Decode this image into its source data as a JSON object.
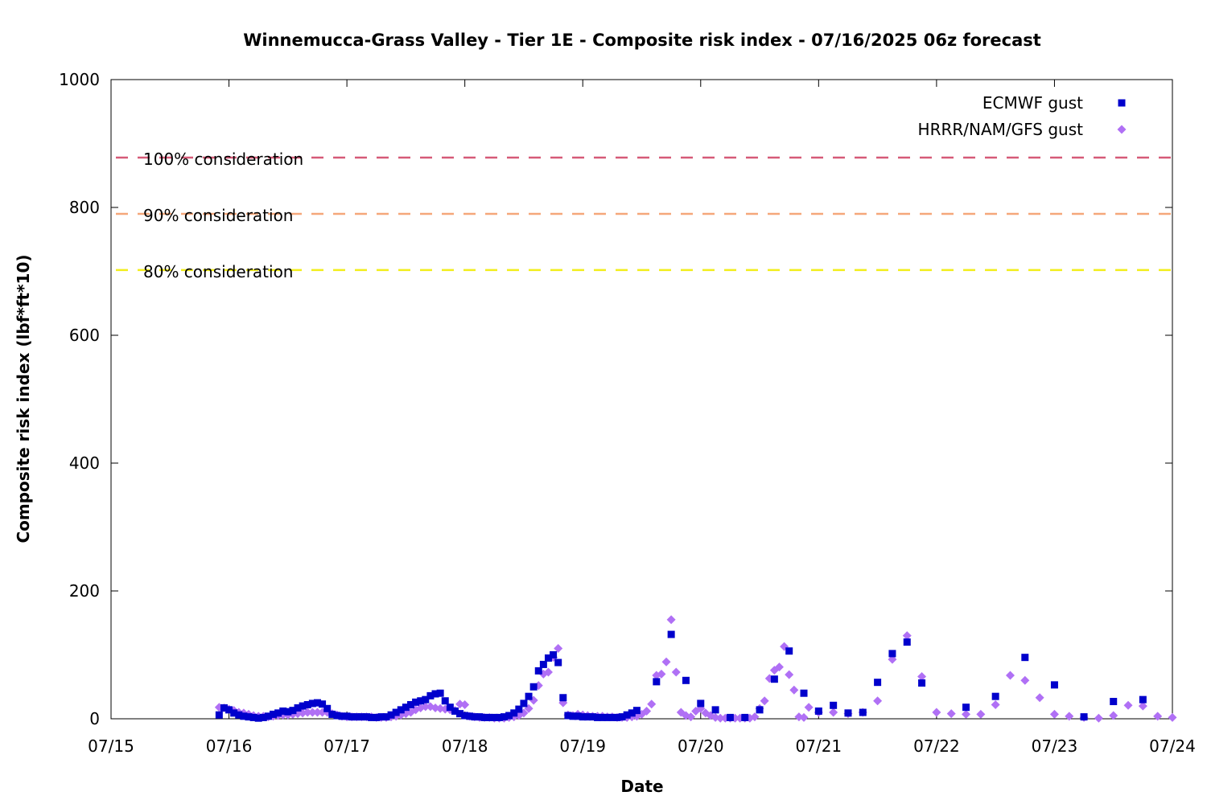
{
  "chart_data": {
    "type": "scatter",
    "title": "Winnemucca-Grass Valley - Tier 1E - Composite risk index - 07/16/2025 06z forecast",
    "xlabel": "Date",
    "ylabel": "Composite risk index (lbf*ft*10)",
    "xlim": [
      "07/15",
      "07/24"
    ],
    "ylim": [
      0,
      1000
    ],
    "x_ticks": [
      "07/15",
      "07/16",
      "07/17",
      "07/18",
      "07/19",
      "07/20",
      "07/21",
      "07/22",
      "07/23",
      "07/24"
    ],
    "y_ticks": [
      0,
      200,
      400,
      600,
      800,
      1000
    ],
    "grid": false,
    "legend_position": "top-right",
    "reference_lines": [
      {
        "label": "100% consideration",
        "value": 878,
        "color": "#d65a78"
      },
      {
        "label": "90% consideration",
        "value": 790,
        "color": "#f5a77a"
      },
      {
        "label": "80% consideration",
        "value": 702,
        "color": "#f2ee1c"
      }
    ],
    "series": [
      {
        "name": "ECMWF gust",
        "color": "#0000cc",
        "marker": "square",
        "points": [
          [
            "07/15 22:00",
            6
          ],
          [
            "07/15 23:00",
            17
          ],
          [
            "07/16 00:00",
            14
          ],
          [
            "07/16 01:00",
            9
          ],
          [
            "07/16 02:00",
            6
          ],
          [
            "07/16 03:00",
            4
          ],
          [
            "07/16 04:00",
            3
          ],
          [
            "07/16 05:00",
            2
          ],
          [
            "07/16 06:00",
            1
          ],
          [
            "07/16 07:00",
            2
          ],
          [
            "07/16 08:00",
            4
          ],
          [
            "07/16 09:00",
            7
          ],
          [
            "07/16 10:00",
            9
          ],
          [
            "07/16 11:00",
            12
          ],
          [
            "07/16 12:00",
            11
          ],
          [
            "07/16 13:00",
            13
          ],
          [
            "07/16 14:00",
            17
          ],
          [
            "07/16 15:00",
            20
          ],
          [
            "07/16 16:00",
            22
          ],
          [
            "07/16 17:00",
            24
          ],
          [
            "07/16 18:00",
            25
          ],
          [
            "07/16 19:00",
            23
          ],
          [
            "07/16 20:00",
            16
          ],
          [
            "07/16 21:00",
            7
          ],
          [
            "07/16 22:00",
            5
          ],
          [
            "07/16 23:00",
            4
          ],
          [
            "07/17 00:00",
            4
          ],
          [
            "07/17 01:00",
            3
          ],
          [
            "07/17 02:00",
            3
          ],
          [
            "07/17 03:00",
            3
          ],
          [
            "07/17 04:00",
            3
          ],
          [
            "07/17 05:00",
            2
          ],
          [
            "07/17 06:00",
            2
          ],
          [
            "07/17 07:00",
            3
          ],
          [
            "07/17 08:00",
            3
          ],
          [
            "07/17 09:00",
            6
          ],
          [
            "07/17 10:00",
            10
          ],
          [
            "07/17 11:00",
            14
          ],
          [
            "07/17 12:00",
            18
          ],
          [
            "07/17 13:00",
            22
          ],
          [
            "07/17 14:00",
            26
          ],
          [
            "07/17 15:00",
            28
          ],
          [
            "07/17 16:00",
            30
          ],
          [
            "07/17 17:00",
            36
          ],
          [
            "07/17 18:00",
            39
          ],
          [
            "07/17 19:00",
            40
          ],
          [
            "07/17 20:00",
            28
          ],
          [
            "07/17 21:00",
            18
          ],
          [
            "07/17 22:00",
            12
          ],
          [
            "07/17 23:00",
            8
          ],
          [
            "07/18 00:00",
            5
          ],
          [
            "07/18 01:00",
            4
          ],
          [
            "07/18 02:00",
            3
          ],
          [
            "07/18 03:00",
            3
          ],
          [
            "07/18 04:00",
            2
          ],
          [
            "07/18 05:00",
            2
          ],
          [
            "07/18 06:00",
            2
          ],
          [
            "07/18 07:00",
            2
          ],
          [
            "07/18 08:00",
            3
          ],
          [
            "07/18 09:00",
            5
          ],
          [
            "07/18 10:00",
            9
          ],
          [
            "07/18 11:00",
            15
          ],
          [
            "07/18 12:00",
            24
          ],
          [
            "07/18 13:00",
            35
          ],
          [
            "07/18 14:00",
            50
          ],
          [
            "07/18 15:00",
            75
          ],
          [
            "07/18 16:00",
            85
          ],
          [
            "07/18 17:00",
            95
          ],
          [
            "07/18 18:00",
            100
          ],
          [
            "07/18 19:00",
            88
          ],
          [
            "07/18 20:00",
            33
          ],
          [
            "07/18 21:00",
            5
          ],
          [
            "07/18 22:00",
            4
          ],
          [
            "07/18 23:00",
            4
          ],
          [
            "07/19 00:00",
            3
          ],
          [
            "07/19 01:00",
            3
          ],
          [
            "07/19 02:00",
            3
          ],
          [
            "07/19 03:00",
            2
          ],
          [
            "07/19 04:00",
            2
          ],
          [
            "07/19 05:00",
            2
          ],
          [
            "07/19 06:00",
            2
          ],
          [
            "07/19 07:00",
            2
          ],
          [
            "07/19 08:00",
            3
          ],
          [
            "07/19 09:00",
            6
          ],
          [
            "07/19 10:00",
            9
          ],
          [
            "07/19 11:00",
            13
          ],
          [
            "07/19 15:00",
            58
          ],
          [
            "07/19 18:00",
            132
          ],
          [
            "07/19 21:00",
            60
          ],
          [
            "07/20 00:00",
            24
          ],
          [
            "07/20 03:00",
            14
          ],
          [
            "07/20 06:00",
            2
          ],
          [
            "07/20 09:00",
            2
          ],
          [
            "07/20 12:00",
            14
          ],
          [
            "07/20 15:00",
            62
          ],
          [
            "07/20 18:00",
            106
          ],
          [
            "07/20 21:00",
            40
          ],
          [
            "07/21 00:00",
            12
          ],
          [
            "07/21 03:00",
            21
          ],
          [
            "07/21 06:00",
            9
          ],
          [
            "07/21 09:00",
            10
          ],
          [
            "07/21 12:00",
            57
          ],
          [
            "07/21 15:00",
            102
          ],
          [
            "07/21 18:00",
            120
          ],
          [
            "07/21 21:00",
            56
          ],
          [
            "07/22 06:00",
            18
          ],
          [
            "07/22 12:00",
            35
          ],
          [
            "07/22 18:00",
            96
          ],
          [
            "07/23 00:00",
            53
          ],
          [
            "07/23 06:00",
            3
          ],
          [
            "07/23 12:00",
            27
          ],
          [
            "07/23 18:00",
            30
          ]
        ]
      },
      {
        "name": "HRRR/NAM/GFS gust",
        "color": "#b070f5",
        "marker": "diamond",
        "points": [
          [
            "07/15 22:00",
            18
          ],
          [
            "07/15 23:00",
            17
          ],
          [
            "07/16 00:00",
            15
          ],
          [
            "07/16 01:00",
            13
          ],
          [
            "07/16 02:00",
            10
          ],
          [
            "07/16 03:00",
            9
          ],
          [
            "07/16 04:00",
            7
          ],
          [
            "07/16 05:00",
            5
          ],
          [
            "07/16 06:00",
            4
          ],
          [
            "07/16 07:00",
            4
          ],
          [
            "07/16 08:00",
            3
          ],
          [
            "07/16 09:00",
            4
          ],
          [
            "07/16 10:00",
            5
          ],
          [
            "07/16 11:00",
            6
          ],
          [
            "07/16 12:00",
            6
          ],
          [
            "07/16 13:00",
            7
          ],
          [
            "07/16 14:00",
            8
          ],
          [
            "07/16 15:00",
            9
          ],
          [
            "07/16 16:00",
            10
          ],
          [
            "07/16 17:00",
            10
          ],
          [
            "07/16 18:00",
            10
          ],
          [
            "07/16 19:00",
            10
          ],
          [
            "07/16 20:00",
            10
          ],
          [
            "07/16 21:00",
            8
          ],
          [
            "07/16 22:00",
            6
          ],
          [
            "07/16 23:00",
            4
          ],
          [
            "07/17 00:00",
            3
          ],
          [
            "07/17 01:00",
            3
          ],
          [
            "07/17 02:00",
            3
          ],
          [
            "07/17 03:00",
            3
          ],
          [
            "07/17 04:00",
            3
          ],
          [
            "07/17 05:00",
            3
          ],
          [
            "07/17 06:00",
            2
          ],
          [
            "07/17 07:00",
            2
          ],
          [
            "07/17 08:00",
            2
          ],
          [
            "07/17 09:00",
            3
          ],
          [
            "07/17 10:00",
            4
          ],
          [
            "07/17 11:00",
            6
          ],
          [
            "07/17 12:00",
            8
          ],
          [
            "07/17 13:00",
            10
          ],
          [
            "07/17 14:00",
            14
          ],
          [
            "07/17 15:00",
            17
          ],
          [
            "07/17 16:00",
            19
          ],
          [
            "07/17 17:00",
            19
          ],
          [
            "07/17 18:00",
            17
          ],
          [
            "07/17 19:00",
            16
          ],
          [
            "07/17 20:00",
            15
          ],
          [
            "07/17 21:00",
            14
          ],
          [
            "07/17 22:00",
            13
          ],
          [
            "07/17 23:00",
            23
          ],
          [
            "07/18 00:00",
            22
          ],
          [
            "07/18 01:00",
            4
          ],
          [
            "07/18 02:00",
            3
          ],
          [
            "07/18 03:00",
            2
          ],
          [
            "07/18 04:00",
            2
          ],
          [
            "07/18 05:00",
            2
          ],
          [
            "07/18 06:00",
            1
          ],
          [
            "07/18 07:00",
            1
          ],
          [
            "07/18 08:00",
            1
          ],
          [
            "07/18 09:00",
            2
          ],
          [
            "07/18 10:00",
            3
          ],
          [
            "07/18 11:00",
            5
          ],
          [
            "07/18 12:00",
            9
          ],
          [
            "07/18 13:00",
            16
          ],
          [
            "07/18 14:00",
            29
          ],
          [
            "07/18 15:00",
            52
          ],
          [
            "07/18 16:00",
            70
          ],
          [
            "07/18 17:00",
            73
          ],
          [
            "07/18 18:00",
            96
          ],
          [
            "07/18 19:00",
            110
          ],
          [
            "07/18 20:00",
            25
          ],
          [
            "07/18 21:00",
            6
          ],
          [
            "07/18 22:00",
            5
          ],
          [
            "07/18 23:00",
            7
          ],
          [
            "07/19 00:00",
            6
          ],
          [
            "07/19 01:00",
            5
          ],
          [
            "07/19 02:00",
            4
          ],
          [
            "07/19 03:00",
            4
          ],
          [
            "07/19 04:00",
            4
          ],
          [
            "07/19 05:00",
            3
          ],
          [
            "07/19 06:00",
            3
          ],
          [
            "07/19 07:00",
            2
          ],
          [
            "07/19 08:00",
            2
          ],
          [
            "07/19 09:00",
            2
          ],
          [
            "07/19 10:00",
            3
          ],
          [
            "07/19 11:00",
            4
          ],
          [
            "07/19 12:00",
            7
          ],
          [
            "07/19 13:00",
            12
          ],
          [
            "07/19 14:00",
            23
          ],
          [
            "07/19 15:00",
            68
          ],
          [
            "07/19 16:00",
            70
          ],
          [
            "07/19 17:00",
            89
          ],
          [
            "07/19 18:00",
            155
          ],
          [
            "07/19 19:00",
            73
          ],
          [
            "07/19 20:00",
            10
          ],
          [
            "07/19 21:00",
            5
          ],
          [
            "07/19 22:00",
            3
          ],
          [
            "07/19 23:00",
            12
          ],
          [
            "07/20 00:00",
            16
          ],
          [
            "07/20 01:00",
            9
          ],
          [
            "07/20 02:00",
            5
          ],
          [
            "07/20 03:00",
            2
          ],
          [
            "07/20 04:00",
            1
          ],
          [
            "07/20 05:00",
            1
          ],
          [
            "07/20 06:00",
            1
          ],
          [
            "07/20 07:00",
            1
          ],
          [
            "07/20 08:00",
            1
          ],
          [
            "07/20 09:00",
            1
          ],
          [
            "07/20 10:00",
            1
          ],
          [
            "07/20 11:00",
            3
          ],
          [
            "07/20 12:00",
            16
          ],
          [
            "07/20 13:00",
            28
          ],
          [
            "07/20 14:00",
            63
          ],
          [
            "07/20 15:00",
            76
          ],
          [
            "07/20 16:00",
            81
          ],
          [
            "07/20 17:00",
            113
          ],
          [
            "07/20 18:00",
            69
          ],
          [
            "07/20 19:00",
            45
          ],
          [
            "07/20 20:00",
            3
          ],
          [
            "07/20 21:00",
            2
          ],
          [
            "07/20 22:00",
            18
          ],
          [
            "07/21 00:00",
            10
          ],
          [
            "07/21 03:00",
            10
          ],
          [
            "07/21 06:00",
            8
          ],
          [
            "07/21 09:00",
            10
          ],
          [
            "07/21 12:00",
            28
          ],
          [
            "07/21 15:00",
            93
          ],
          [
            "07/21 18:00",
            130
          ],
          [
            "07/21 21:00",
            66
          ],
          [
            "07/22 00:00",
            10
          ],
          [
            "07/22 03:00",
            8
          ],
          [
            "07/22 06:00",
            7
          ],
          [
            "07/22 09:00",
            7
          ],
          [
            "07/22 12:00",
            22
          ],
          [
            "07/22 15:00",
            68
          ],
          [
            "07/22 18:00",
            60
          ],
          [
            "07/22 21:00",
            33
          ],
          [
            "07/23 00:00",
            7
          ],
          [
            "07/23 03:00",
            4
          ],
          [
            "07/23 06:00",
            2
          ],
          [
            "07/23 09:00",
            1
          ],
          [
            "07/23 12:00",
            5
          ],
          [
            "07/23 15:00",
            21
          ],
          [
            "07/23 18:00",
            20
          ],
          [
            "07/23 21:00",
            4
          ],
          [
            "07/24 00:00",
            2
          ]
        ]
      }
    ]
  }
}
